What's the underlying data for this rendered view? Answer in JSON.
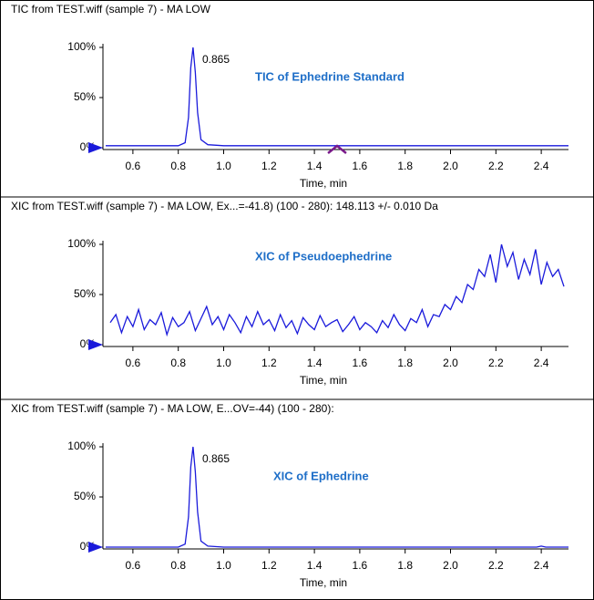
{
  "chart_data": [
    {
      "type": "line",
      "title": "TIC from TEST.wiff (sample 7) - MA LOW",
      "label": "TIC of Ephedrine Standard",
      "peak_label": "0.865",
      "xlabel": "Time, min",
      "color": "#1a1adb",
      "x": [
        0.48,
        0.6,
        0.7,
        0.8,
        0.83,
        0.845,
        0.855,
        0.865,
        0.875,
        0.885,
        0.9,
        0.93,
        1.0,
        1.2,
        1.4,
        1.6,
        1.8,
        2.0,
        2.2,
        2.4,
        2.52
      ],
      "values": [
        2,
        2,
        2,
        2,
        5,
        30,
        80,
        100,
        75,
        35,
        8,
        3,
        2,
        2,
        2,
        2,
        2,
        2,
        2,
        2,
        2
      ],
      "xlim": [
        0.48,
        2.52
      ],
      "ylim": [
        0,
        100
      ],
      "xticks": [
        0.6,
        0.8,
        {
          "value": 1.0,
          "label": "1.0"
        },
        1.2,
        1.4,
        1.6,
        1.8,
        {
          "value": 2.0,
          "label": "2.0"
        },
        2.2,
        2.4
      ],
      "yticks": [
        {
          "value": 0,
          "label": "0%"
        },
        {
          "value": 50,
          "label": "50%"
        },
        {
          "value": 100,
          "label": "100%"
        }
      ]
    },
    {
      "type": "line",
      "title": "XIC from TEST.wiff (sample 7) - MA LOW, Ex...=-41.8) (100 - 280): 148.113 +/- 0.010 Da",
      "label": "XIC of Pseudoephedrine",
      "xlabel": "Time, min",
      "color": "#1a1adb",
      "x": [
        0.5,
        0.525,
        0.55,
        0.575,
        0.6,
        0.625,
        0.65,
        0.675,
        0.7,
        0.725,
        0.75,
        0.775,
        0.8,
        0.825,
        0.85,
        0.875,
        0.9,
        0.925,
        0.95,
        0.975,
        1.0,
        1.025,
        1.05,
        1.075,
        1.1,
        1.125,
        1.15,
        1.175,
        1.2,
        1.225,
        1.25,
        1.275,
        1.3,
        1.325,
        1.35,
        1.375,
        1.4,
        1.425,
        1.45,
        1.475,
        1.5,
        1.525,
        1.55,
        1.575,
        1.6,
        1.625,
        1.65,
        1.675,
        1.7,
        1.725,
        1.75,
        1.775,
        1.8,
        1.825,
        1.85,
        1.875,
        1.9,
        1.925,
        1.95,
        1.975,
        2.0,
        2.025,
        2.05,
        2.075,
        2.1,
        2.125,
        2.15,
        2.175,
        2.2,
        2.225,
        2.25,
        2.275,
        2.3,
        2.325,
        2.35,
        2.375,
        2.4,
        2.425,
        2.45,
        2.475,
        2.5
      ],
      "values": [
        22,
        30,
        12,
        28,
        18,
        35,
        15,
        25,
        20,
        32,
        10,
        27,
        18,
        22,
        33,
        14,
        26,
        38,
        20,
        28,
        15,
        30,
        22,
        12,
        28,
        18,
        33,
        20,
        25,
        14,
        30,
        17,
        24,
        11,
        27,
        20,
        15,
        29,
        18,
        22,
        25,
        13,
        20,
        28,
        15,
        22,
        18,
        12,
        24,
        17,
        30,
        20,
        14,
        26,
        22,
        35,
        18,
        30,
        28,
        40,
        35,
        48,
        42,
        60,
        55,
        75,
        68,
        90,
        62,
        100,
        78,
        92,
        65,
        85,
        70,
        95,
        60,
        82,
        68,
        75,
        58
      ],
      "xlim": [
        0.48,
        2.52
      ],
      "ylim": [
        0,
        100
      ],
      "xticks": [
        0.6,
        0.8,
        {
          "value": 1.0,
          "label": "1.0"
        },
        1.2,
        1.4,
        1.6,
        1.8,
        {
          "value": 2.0,
          "label": "2.0"
        },
        2.2,
        2.4
      ],
      "yticks": [
        {
          "value": 0,
          "label": "0%"
        },
        {
          "value": 50,
          "label": "50%"
        },
        {
          "value": 100,
          "label": "100%"
        }
      ]
    },
    {
      "type": "line",
      "title": "XIC from TEST.wiff (sample 7) - MA LOW, E...OV=-44) (100 - 280):",
      "label": "XIC of Ephedrine",
      "peak_label": "0.865",
      "xlabel": "Time, min",
      "color": "#1a1adb",
      "x": [
        0.48,
        0.6,
        0.7,
        0.8,
        0.83,
        0.845,
        0.855,
        0.865,
        0.875,
        0.885,
        0.9,
        0.93,
        1.0,
        1.2,
        1.4,
        1.6,
        1.8,
        2.0,
        2.2,
        2.38,
        2.4,
        2.42,
        2.52
      ],
      "values": [
        0,
        0,
        0,
        0,
        3,
        30,
        80,
        100,
        75,
        35,
        6,
        1,
        0,
        0,
        0,
        0,
        0,
        0,
        0,
        0,
        1,
        0,
        0
      ],
      "xlim": [
        0.48,
        2.52
      ],
      "ylim": [
        0,
        100
      ],
      "xticks": [
        0.6,
        0.8,
        {
          "value": 1.0,
          "label": "1.0"
        },
        1.2,
        1.4,
        1.6,
        1.8,
        {
          "value": 2.0,
          "label": "2.0"
        },
        2.2,
        2.4
      ],
      "yticks": [
        {
          "value": 0,
          "label": "0%"
        },
        {
          "value": 50,
          "label": "50%"
        },
        {
          "value": 100,
          "label": "100%"
        }
      ]
    }
  ]
}
